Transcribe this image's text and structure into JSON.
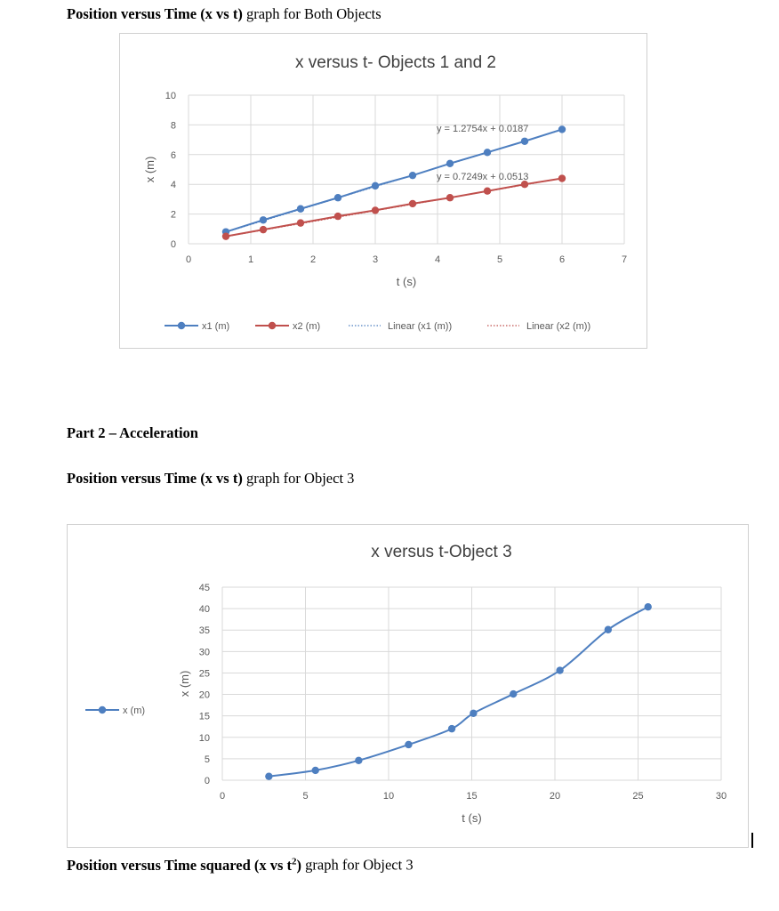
{
  "headings": {
    "h1_bold": "Position versus Time (x vs t)",
    "h1_rest": " graph for Both Objects",
    "part2": "Part 2 – Acceleration",
    "h3_bold": "Position versus Time (x vs t)",
    "h3_rest": " graph for Object 3",
    "h4_bold": "Position versus Time squared (x vs t",
    "h4_sup": "2",
    "h4_bold_end": ")",
    "h4_rest": " graph for Object 3"
  },
  "colors": {
    "series1": "#4e7fc0",
    "series2": "#c0504d",
    "grid": "#d9d9d9",
    "axis_text": "#595959"
  },
  "chart_data": [
    {
      "type": "line",
      "title": "x versus t- Objects 1 and 2",
      "xlabel": "t (s)",
      "ylabel": "x (m)",
      "xlim": [
        0,
        7
      ],
      "ylim": [
        0,
        10
      ],
      "x_ticks": [
        "0",
        "1",
        "2",
        "3",
        "4",
        "5",
        "6",
        "7"
      ],
      "y_ticks": [
        "0",
        "2",
        "4",
        "6",
        "8",
        "10"
      ],
      "grid": true,
      "legend_position": "bottom",
      "series": [
        {
          "name": "x1 (m)",
          "x": [
            0.6,
            1.2,
            1.8,
            2.4,
            3.0,
            3.6,
            4.2,
            4.8,
            5.4,
            6.0
          ],
          "y": [
            0.8,
            1.6,
            2.35,
            3.1,
            3.9,
            4.6,
            5.4,
            6.15,
            6.9,
            7.7
          ]
        },
        {
          "name": "x2 (m)",
          "x": [
            0.6,
            1.2,
            1.8,
            2.4,
            3.0,
            3.6,
            4.2,
            4.8,
            5.4,
            6.0
          ],
          "y": [
            0.5,
            0.95,
            1.4,
            1.85,
            2.25,
            2.7,
            3.1,
            3.55,
            4.0,
            4.4
          ]
        }
      ],
      "trendlines": [
        {
          "name": "Linear (x1 (m))",
          "slope": 1.2754,
          "intercept": 0.0187,
          "equation": "y = 1.2754x + 0.0187"
        },
        {
          "name": "Linear (x2 (m))",
          "slope": 0.7249,
          "intercept": 0.0513,
          "equation": "y = 0.7249x + 0.0513"
        }
      ]
    },
    {
      "type": "line",
      "title": "x versus t-Object 3",
      "xlabel": "t (s)",
      "ylabel": "x (m)",
      "xlim": [
        0,
        30
      ],
      "ylim": [
        0,
        45
      ],
      "x_ticks": [
        "0",
        "5",
        "10",
        "15",
        "20",
        "25",
        "30"
      ],
      "y_ticks": [
        "0",
        "5",
        "10",
        "15",
        "20",
        "25",
        "30",
        "35",
        "40",
        "45"
      ],
      "grid": true,
      "legend_position": "left",
      "series": [
        {
          "name": "x (m)",
          "x": [
            2.8,
            5.6,
            8.2,
            11.2,
            13.8,
            15.1,
            17.5,
            20.3,
            23.2,
            25.6
          ],
          "y": [
            0.9,
            2.3,
            4.6,
            8.3,
            12.0,
            15.6,
            20.1,
            25.6,
            35.1,
            40.4
          ]
        }
      ]
    }
  ]
}
